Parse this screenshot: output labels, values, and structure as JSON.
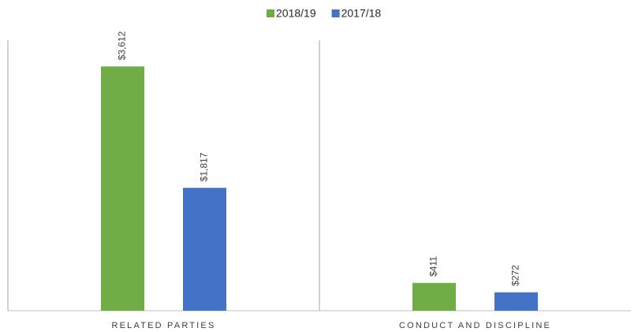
{
  "chart_data": {
    "type": "bar",
    "categories": [
      "RELATED PARTIES",
      "CONDUCT AND DISCIPLINE"
    ],
    "series": [
      {
        "name": "2018/19",
        "color": "#70ad47",
        "values": [
          3612,
          411
        ],
        "value_labels": [
          "$3,612",
          "$411"
        ]
      },
      {
        "name": "2017/18",
        "color": "#4472c4",
        "values": [
          1817,
          272
        ],
        "value_labels": [
          "$1,817",
          "$272"
        ]
      }
    ],
    "ylim": [
      0,
      4000
    ],
    "legend": "top"
  }
}
